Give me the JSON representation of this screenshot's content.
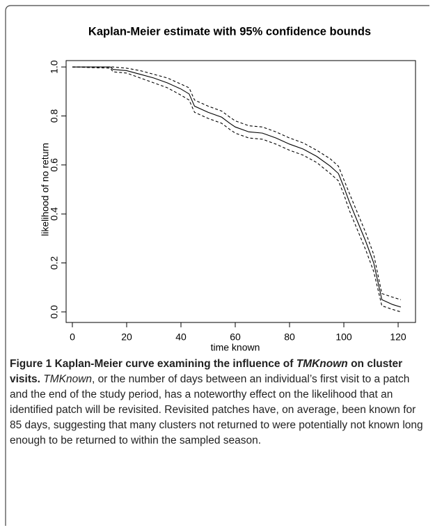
{
  "chart_data": {
    "type": "line",
    "title": "Kaplan-Meier estimate with 95% confidence bounds",
    "xlabel": "time known",
    "ylabel": "likelihood of no return",
    "x": [
      0,
      14,
      15,
      20,
      25,
      30,
      35,
      40,
      43,
      45,
      50,
      55,
      58,
      60,
      65,
      70,
      75,
      80,
      85,
      90,
      95,
      98,
      100,
      102,
      105,
      108,
      111,
      114,
      118,
      121
    ],
    "series": [
      {
        "name": "estimate",
        "color": "#000000",
        "dash": false,
        "values": [
          1.0,
          1.0,
          0.99,
          0.985,
          0.97,
          0.955,
          0.935,
          0.91,
          0.89,
          0.84,
          0.815,
          0.795,
          0.77,
          0.755,
          0.735,
          0.73,
          0.71,
          0.685,
          0.665,
          0.635,
          0.595,
          0.565,
          0.51,
          0.45,
          0.37,
          0.29,
          0.2,
          0.05,
          0.03,
          0.02
        ]
      },
      {
        "name": "upper bound",
        "color": "#000000",
        "dash": true,
        "values": [
          1.0,
          1.0,
          1.0,
          0.995,
          0.985,
          0.97,
          0.955,
          0.93,
          0.915,
          0.865,
          0.84,
          0.82,
          0.795,
          0.78,
          0.76,
          0.755,
          0.735,
          0.71,
          0.69,
          0.66,
          0.625,
          0.595,
          0.54,
          0.485,
          0.405,
          0.325,
          0.235,
          0.075,
          0.06,
          0.05
        ]
      },
      {
        "name": "lower bound",
        "color": "#000000",
        "dash": true,
        "values": [
          1.0,
          0.995,
          0.98,
          0.975,
          0.955,
          0.935,
          0.915,
          0.885,
          0.865,
          0.815,
          0.79,
          0.77,
          0.745,
          0.73,
          0.71,
          0.705,
          0.685,
          0.66,
          0.64,
          0.61,
          0.565,
          0.535,
          0.48,
          0.415,
          0.335,
          0.255,
          0.165,
          0.025,
          0.01,
          0.0
        ]
      }
    ],
    "xlim": [
      -2.3,
      126.4
    ],
    "ylim": [
      -0.043,
      1.026
    ],
    "xticks": [
      0,
      20,
      40,
      60,
      80,
      100,
      120
    ],
    "yticks": [
      {
        "value": 0,
        "label": "0.0"
      },
      0.2,
      0.4,
      0.6,
      0.8,
      {
        "value": 1,
        "label": "1.0"
      }
    ],
    "grid": false
  },
  "caption": {
    "label": "Figure 1",
    "title_a": "Kaplan-Meier curve examining the influence of",
    "title_em": "TMKnown",
    "title_b": "on cluster visits.",
    "body_em": "TMKnown",
    "body": ", or the number of days between an individual’s first visit to a patch and the end of the study period, has a noteworthy effect on the likelihood that an identified patch will be revisited. Revisited patches have, on average, been known for 85 days, suggesting that many clusters not returned to were potentially not known long enough to be returned to within the sampled season."
  }
}
